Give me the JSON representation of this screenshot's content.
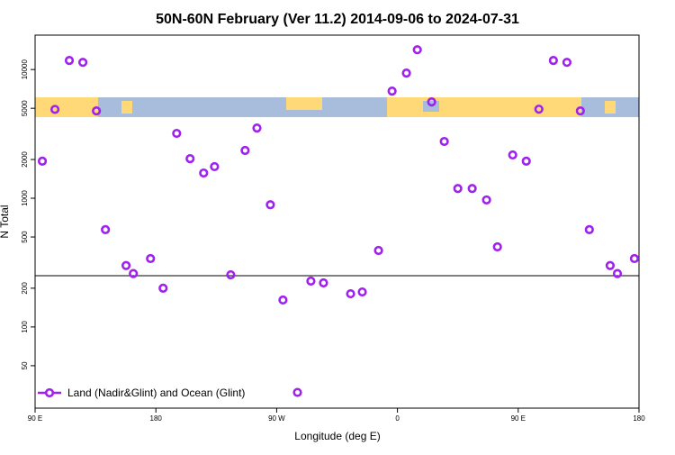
{
  "chart_data": {
    "type": "scatter",
    "title": "50N-60N February (Ver 11.2)   2014-09-06 to 2024-07-31",
    "x_label": "Longitude (deg E)",
    "y_label": "N Total",
    "xlim": [
      90,
      540
    ],
    "xticks": [
      {
        "value": 90,
        "label": "90 E"
      },
      180,
      {
        "value": 270,
        "label": "90 W"
      },
      {
        "value": 360,
        "label": "0"
      },
      {
        "value": 450,
        "label": "90 E"
      },
      {
        "value": 540,
        "label": "180"
      }
    ],
    "ylim": [
      23.4,
      18500
    ],
    "yticks": [
      50,
      100,
      200,
      500,
      1000,
      2000,
      5000,
      10000
    ],
    "ylog": true,
    "grid": false,
    "reference_line": 250,
    "legend": "bottom-left",
    "series": [
      {
        "name": "Land (Nadir&Glint) and Ocean (Glint)",
        "color": "#a020f0",
        "x": [
          95.4,
          104.8,
          115.5,
          125.6,
          135.7,
          142.4,
          157.8,
          163.2,
          176.0,
          185.4,
          195.5,
          205.5,
          215.6,
          223.7,
          235.8,
          246.5,
          255.3,
          265.3,
          274.7,
          285.5,
          295.5,
          304.9,
          325.1,
          333.8,
          345.9,
          356.0,
          366.7,
          374.8,
          385.5,
          394.9,
          405.0,
          415.7,
          426.4,
          434.5,
          445.9,
          456.0,
          465.4,
          476.2,
          486.3,
          496.3,
          503.0,
          518.5,
          523.9,
          536.6
        ],
        "values": [
          1940,
          4900,
          11750,
          11370,
          4770,
          570,
          300,
          260,
          340,
          200,
          3190,
          2030,
          1570,
          1760,
          254,
          2350,
          3510,
          890,
          162,
          31,
          227,
          220,
          181,
          187,
          393,
          6800,
          9380,
          14250,
          5600,
          2760,
          1190,
          1190,
          970,
          419,
          2170,
          1940,
          4920,
          11750,
          11370,
          4770,
          570,
          300,
          260,
          340
        ]
      }
    ]
  }
}
